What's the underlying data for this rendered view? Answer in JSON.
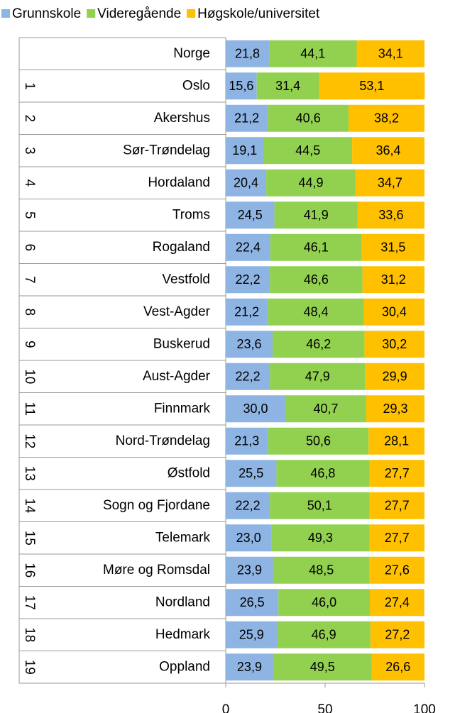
{
  "chart_data": {
    "type": "stacked-bar-horizontal",
    "categories": [
      "Norge",
      "Oslo",
      "Akershus",
      "Sør-Trøndelag",
      "Hordaland",
      "Troms",
      "Rogaland",
      "Vestfold",
      "Vest-Agder",
      "Buskerud",
      "Aust-Agder",
      "Finnmark",
      "Nord-Trøndelag",
      "Østfold",
      "Sogn og Fjordane",
      "Telemark",
      "Møre og Romsdal",
      "Nordland",
      "Hedmark",
      "Oppland"
    ],
    "ranks": [
      null,
      "1",
      "2",
      "3",
      "4",
      "5",
      "6",
      "7",
      "8",
      "9",
      "10",
      "11",
      "12",
      "13",
      "14",
      "15",
      "16",
      "17",
      "18",
      "19"
    ],
    "series": [
      {
        "name": "Grunnskole",
        "color": "#8eb4e3",
        "values": [
          21.8,
          15.6,
          21.2,
          19.1,
          20.4,
          24.5,
          22.4,
          22.2,
          21.2,
          23.6,
          22.2,
          30.0,
          21.3,
          25.5,
          22.2,
          23.0,
          23.9,
          26.5,
          25.9,
          23.9
        ],
        "value_labels": [
          "21,8",
          "15,6",
          "21,2",
          "19,1",
          "20,4",
          "24,5",
          "22,4",
          "22,2",
          "21,2",
          "23,6",
          "22,2",
          "30,0",
          "21,3",
          "25,5",
          "22,2",
          "23,0",
          "23,9",
          "26,5",
          "25,9",
          "23,9"
        ]
      },
      {
        "name": "Videregående",
        "color": "#92d050",
        "values": [
          44.1,
          31.4,
          40.6,
          44.5,
          44.9,
          41.9,
          46.1,
          46.6,
          48.4,
          46.2,
          47.9,
          40.7,
          50.6,
          46.8,
          50.1,
          49.3,
          48.5,
          46.0,
          46.9,
          49.5
        ],
        "value_labels": [
          "44,1",
          "31,4",
          "40,6",
          "44,5",
          "44,9",
          "41,9",
          "46,1",
          "46,6",
          "48,4",
          "46,2",
          "47,9",
          "40,7",
          "50,6",
          "46,8",
          "50,1",
          "49,3",
          "48,5",
          "46,0",
          "46,9",
          "49,5"
        ]
      },
      {
        "name": "Høgskole/universitet",
        "color": "#ffc000",
        "values": [
          34.1,
          53.1,
          38.2,
          36.4,
          34.7,
          33.6,
          31.5,
          31.2,
          30.4,
          30.2,
          29.9,
          29.3,
          28.1,
          27.7,
          27.7,
          27.7,
          27.6,
          27.4,
          27.2,
          26.6
        ],
        "value_labels": [
          "34,1",
          "53,1",
          "38,2",
          "36,4",
          "34,7",
          "33,6",
          "31,5",
          "31,2",
          "30,4",
          "30,2",
          "29,9",
          "29,3",
          "28,1",
          "27,7",
          "27,7",
          "27,7",
          "27,6",
          "27,4",
          "27,2",
          "26,6"
        ]
      }
    ],
    "xlim": [
      0,
      100
    ],
    "xticks": [
      0,
      50,
      100
    ],
    "legend": "top"
  }
}
